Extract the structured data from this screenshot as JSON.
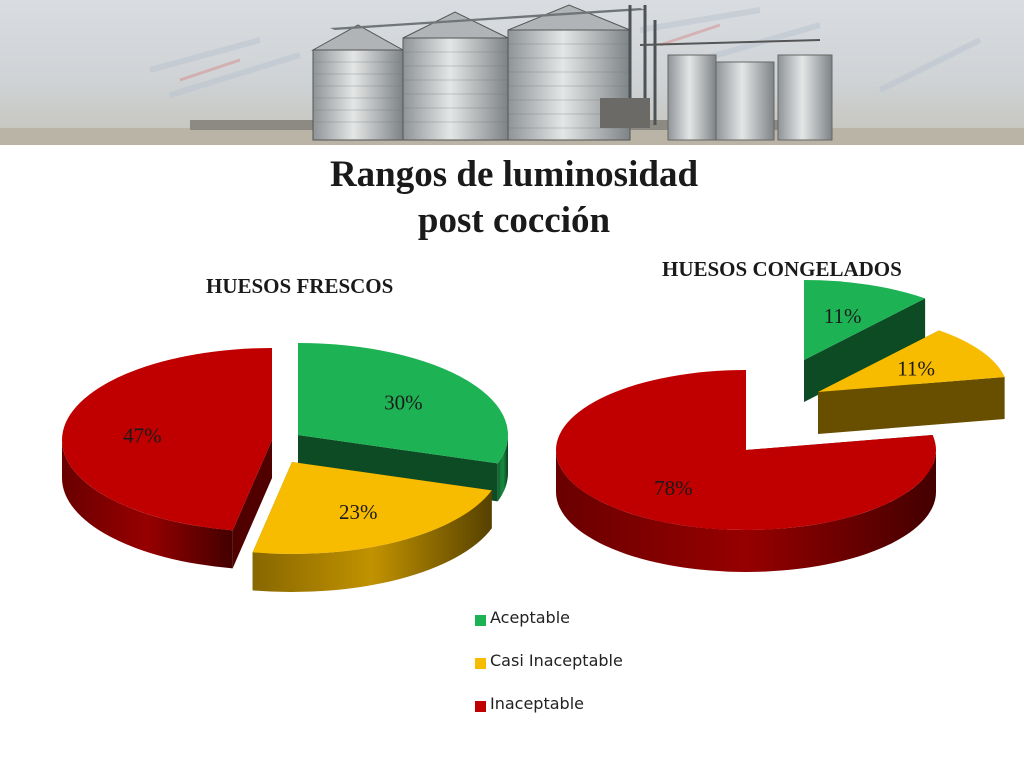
{
  "slide": {
    "title_line1": "Rangos de luminosidad",
    "title_line2": "post cocción"
  },
  "colors": {
    "aceptable": "#1db354",
    "casi_inaceptable": "#f7bb00",
    "inaceptable": "#c00000"
  },
  "legend": {
    "items": [
      {
        "label": "Aceptable",
        "color": "#1db354"
      },
      {
        "label": "Casi Inaceptable",
        "color": "#f7bb00"
      },
      {
        "label": "Inaceptable",
        "color": "#c00000"
      }
    ]
  },
  "chart_data": [
    {
      "type": "pie",
      "style": "3d-exploded",
      "title": "HUESOS FRESCOS",
      "categories": [
        "Aceptable",
        "Casi Inaceptable",
        "Inaceptable"
      ],
      "values": [
        30,
        23,
        47
      ],
      "labels": [
        "30%",
        "23%",
        "47%"
      ]
    },
    {
      "type": "pie",
      "style": "3d-exploded",
      "title": "HUESOS CONGELADOS",
      "categories": [
        "Aceptable",
        "Casi Inaceptable",
        "Inaceptable"
      ],
      "values": [
        11,
        11,
        78
      ],
      "labels": [
        "11%",
        "11%",
        "78%"
      ]
    }
  ]
}
